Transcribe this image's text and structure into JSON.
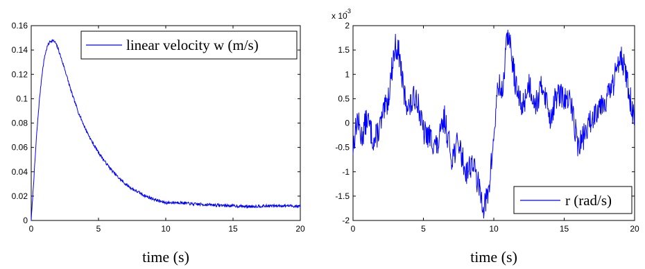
{
  "chart_data": [
    {
      "type": "line",
      "xlabel": "time (s)",
      "ylabel": "",
      "xlim": [
        0,
        20
      ],
      "ylim": [
        0,
        0.16
      ],
      "x_ticks": [
        0,
        5,
        10,
        15,
        20
      ],
      "y_ticks": [
        0,
        0.02,
        0.04,
        0.06,
        0.08,
        0.1,
        0.12,
        0.14,
        0.16
      ],
      "x_tick_labels": [
        "0",
        "5",
        "10",
        "15",
        "20"
      ],
      "y_tick_labels": [
        "0",
        "0.02",
        "0.04",
        "0.06",
        "0.08",
        "0.1",
        "0.12",
        "0.14",
        "0.16"
      ],
      "legend_position": "top-right",
      "grid": false,
      "series": [
        {
          "name": "linear velocity w (m/s)",
          "color": "#0000ff",
          "x": [
            0,
            0.2,
            0.4,
            0.6,
            0.8,
            1.0,
            1.2,
            1.4,
            1.6,
            1.8,
            2.0,
            2.5,
            3.0,
            3.5,
            4.0,
            4.5,
            5.0,
            5.5,
            6.0,
            6.5,
            7.0,
            7.5,
            8.0,
            8.5,
            9.0,
            9.5,
            10.0,
            11.0,
            12.0,
            13.0,
            14.0,
            15.0,
            16.0,
            17.0,
            18.0,
            19.0,
            20.0
          ],
          "y": [
            0,
            0.035,
            0.07,
            0.098,
            0.12,
            0.135,
            0.143,
            0.147,
            0.148,
            0.146,
            0.141,
            0.124,
            0.105,
            0.089,
            0.076,
            0.065,
            0.056,
            0.048,
            0.041,
            0.035,
            0.03,
            0.026,
            0.023,
            0.02,
            0.018,
            0.016,
            0.0145,
            0.0148,
            0.0135,
            0.013,
            0.0125,
            0.012,
            0.0115,
            0.0118,
            0.012,
            0.0122,
            0.0115
          ]
        }
      ]
    },
    {
      "type": "line",
      "xlabel": "time (s)",
      "ylabel": "",
      "xlim": [
        0,
        20
      ],
      "ylim": [
        -2,
        2
      ],
      "scale_multiplier": "x 10",
      "scale_exponent": "-3",
      "x_ticks": [
        0,
        5,
        10,
        15,
        20
      ],
      "y_ticks": [
        -2,
        -1.5,
        -1,
        -0.5,
        0,
        0.5,
        1,
        1.5,
        2
      ],
      "x_tick_labels": [
        "0",
        "5",
        "10",
        "15",
        "20"
      ],
      "y_tick_labels": [
        "-2",
        "-1.5",
        "-1",
        "-0.5",
        "0",
        "0.5",
        "1",
        "1.5",
        "2"
      ],
      "legend_position": "bottom-right",
      "grid": false,
      "series": [
        {
          "name": "r (rad/s)",
          "color": "#0000ff",
          "x": [
            0,
            0.3,
            0.6,
            1.0,
            1.5,
            2.0,
            2.5,
            2.8,
            3.0,
            3.3,
            3.6,
            4.0,
            4.5,
            5.0,
            5.5,
            6.0,
            6.5,
            7.0,
            7.5,
            8.0,
            8.5,
            9.0,
            9.3,
            9.6,
            10.0,
            10.3,
            10.6,
            11.0,
            11.3,
            11.6,
            12.0,
            12.5,
            13.0,
            13.5,
            14.0,
            14.5,
            15.0,
            15.5,
            16.0,
            16.5,
            17.0,
            17.5,
            18.0,
            18.5,
            19.0,
            19.5,
            20.0
          ],
          "y": [
            -0.5,
            0.1,
            -0.3,
            0.1,
            -0.4,
            0.0,
            0.5,
            1.2,
            1.6,
            1.4,
            0.6,
            0.3,
            0.6,
            -0.2,
            -0.3,
            -0.5,
            0.1,
            -0.7,
            -0.4,
            -1.0,
            -0.8,
            -1.4,
            -1.7,
            -1.5,
            -0.3,
            0.8,
            0.6,
            1.9,
            1.3,
            0.7,
            0.3,
            0.8,
            0.4,
            0.8,
            0.1,
            0.6,
            0.5,
            0.4,
            -0.5,
            -0.2,
            0.1,
            0.4,
            0.5,
            0.8,
            1.5,
            0.8,
            0.0
          ]
        }
      ]
    }
  ]
}
